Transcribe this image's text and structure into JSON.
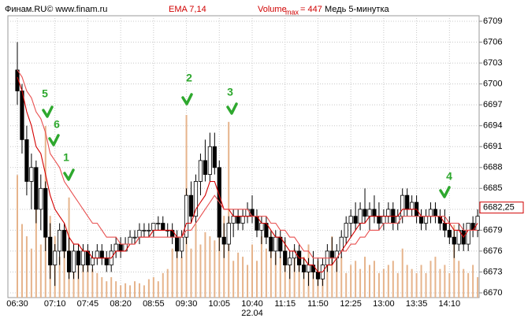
{
  "header": {
    "source": "Финам.RU©  www.finam.ru",
    "indicator": "EMA 7,14",
    "volume_label": "Volume",
    "volume_sub": "max",
    "volume_max_label": "= 447",
    "instrument": "Медь 5-минутка"
  },
  "annotations": [
    "5",
    "6",
    "1",
    "2",
    "3",
    "4"
  ],
  "chart_data": {
    "type": "candlestick",
    "x": [
      "06:30",
      "06:35",
      "06:40",
      "06:45",
      "06:50",
      "06:55",
      "07:00",
      "07:05",
      "07:10",
      "07:15",
      "07:20",
      "07:25",
      "07:30",
      "07:35",
      "07:40",
      "07:45",
      "07:50",
      "07:55",
      "08:00",
      "08:05",
      "08:10",
      "08:15",
      "08:20",
      "08:25",
      "08:30",
      "08:35",
      "08:40",
      "08:45",
      "08:50",
      "08:55",
      "09:00",
      "09:05",
      "09:10",
      "09:15",
      "09:20",
      "09:25",
      "09:30",
      "09:35",
      "09:40",
      "09:45",
      "09:50",
      "09:55",
      "10:00",
      "10:05",
      "10:10",
      "10:15",
      "10:20",
      "10:25",
      "10:30",
      "10:35",
      "10:40",
      "10:45",
      "10:50",
      "10:55",
      "11:00",
      "11:05",
      "11:10",
      "11:15",
      "11:20",
      "11:25",
      "11:30",
      "11:35",
      "11:40",
      "11:45",
      "11:50",
      "11:55",
      "12:00",
      "12:05",
      "12:10",
      "12:15",
      "12:20",
      "12:25",
      "12:30",
      "12:35",
      "12:40",
      "12:45",
      "12:50",
      "12:55",
      "13:00",
      "13:05",
      "13:10",
      "13:15",
      "13:20",
      "13:25",
      "13:30",
      "13:35",
      "13:40",
      "13:45",
      "13:50",
      "13:55",
      "14:00",
      "14:05",
      "14:10",
      "14:15",
      "14:20",
      "14:25",
      "14:30",
      "14:35",
      "14:40"
    ],
    "candles": [
      [
        6702,
        6706,
        6697,
        6699
      ],
      [
        6699,
        6700,
        6690,
        6692
      ],
      [
        6692,
        6694,
        6684,
        6686
      ],
      [
        6686,
        6690,
        6682,
        6688
      ],
      [
        6688,
        6689,
        6680,
        6682
      ],
      [
        6682,
        6687,
        6679,
        6685
      ],
      [
        6685,
        6686,
        6676,
        6678
      ],
      [
        6678,
        6680,
        6672,
        6674
      ],
      [
        6674,
        6677,
        6671,
        6676
      ],
      [
        6676,
        6680,
        6674,
        6679
      ],
      [
        6679,
        6680,
        6675,
        6676
      ],
      [
        6676,
        6678,
        6672,
        6673
      ],
      [
        6673,
        6677,
        6672,
        6676
      ],
      [
        6676,
        6677,
        6672,
        6674
      ],
      [
        6674,
        6677,
        6673,
        6676
      ],
      [
        6676,
        6677,
        6673,
        6674
      ],
      [
        6674,
        6676,
        6673,
        6675
      ],
      [
        6675,
        6677,
        6674,
        6676
      ],
      [
        6676,
        6677,
        6674,
        6675
      ],
      [
        6675,
        6676,
        6673,
        6674
      ],
      [
        6674,
        6677,
        6673,
        6676
      ],
      [
        6676,
        6678,
        6675,
        6677
      ],
      [
        6677,
        6678,
        6675,
        6676
      ],
      [
        6676,
        6678,
        6676,
        6677
      ],
      [
        6677,
        6679,
        6677,
        6678
      ],
      [
        6678,
        6679,
        6677,
        6678
      ],
      [
        6678,
        6680,
        6677,
        6679
      ],
      [
        6679,
        6680,
        6678,
        6679
      ],
      [
        6679,
        6680,
        6678,
        6679
      ],
      [
        6679,
        6680,
        6678,
        6680
      ],
      [
        6680,
        6681,
        6679,
        6680
      ],
      [
        6680,
        6681,
        6679,
        6679
      ],
      [
        6679,
        6680,
        6678,
        6679
      ],
      [
        6679,
        6680,
        6677,
        6678
      ],
      [
        6678,
        6679,
        6675,
        6676
      ],
      [
        6676,
        6679,
        6675,
        6678
      ],
      [
        6678,
        6685,
        6677,
        6684
      ],
      [
        6684,
        6686,
        6680,
        6681
      ],
      [
        6681,
        6687,
        6680,
        6686
      ],
      [
        6686,
        6690,
        6684,
        6689
      ],
      [
        6689,
        6692,
        6686,
        6687
      ],
      [
        6687,
        6693,
        6686,
        6691
      ],
      [
        6691,
        6693,
        6687,
        6688
      ],
      [
        6688,
        6689,
        6676,
        6678
      ],
      [
        6678,
        6680,
        6675,
        6677
      ],
      [
        6677,
        6681,
        6676,
        6680
      ],
      [
        6680,
        6682,
        6678,
        6681
      ],
      [
        6681,
        6682,
        6679,
        6680
      ],
      [
        6680,
        6682,
        6679,
        6681
      ],
      [
        6681,
        6683,
        6680,
        6682
      ],
      [
        6682,
        6684,
        6680,
        6681
      ],
      [
        6681,
        6682,
        6678,
        6679
      ],
      [
        6679,
        6681,
        6677,
        6680
      ],
      [
        6680,
        6681,
        6677,
        6678
      ],
      [
        6678,
        6679,
        6675,
        6676
      ],
      [
        6676,
        6679,
        6674,
        6678
      ],
      [
        6678,
        6679,
        6675,
        6676
      ],
      [
        6676,
        6678,
        6673,
        6674
      ],
      [
        6674,
        6676,
        6672,
        6675
      ],
      [
        6675,
        6677,
        6673,
        6676
      ],
      [
        6676,
        6677,
        6673,
        6674
      ],
      [
        6674,
        6675,
        6672,
        6673
      ],
      [
        6673,
        6675,
        6671,
        6674
      ],
      [
        6674,
        6676,
        6672,
        6673
      ],
      [
        6673,
        6675,
        6671,
        6672
      ],
      [
        6672,
        6675,
        6671,
        6674
      ],
      [
        6674,
        6677,
        6673,
        6676
      ],
      [
        6676,
        6678,
        6674,
        6675
      ],
      [
        6675,
        6677,
        6673,
        6676
      ],
      [
        6676,
        6679,
        6675,
        6678
      ],
      [
        6678,
        6681,
        6677,
        6680
      ],
      [
        6680,
        6682,
        6678,
        6681
      ],
      [
        6681,
        6683,
        6679,
        6680
      ],
      [
        6680,
        6683,
        6679,
        6682
      ],
      [
        6682,
        6685,
        6680,
        6681
      ],
      [
        6681,
        6683,
        6679,
        6682
      ],
      [
        6682,
        6684,
        6680,
        6681
      ],
      [
        6681,
        6683,
        6679,
        6680
      ],
      [
        6680,
        6682,
        6679,
        6681
      ],
      [
        6681,
        6683,
        6680,
        6682
      ],
      [
        6682,
        6683,
        6679,
        6680
      ],
      [
        6680,
        6682,
        6679,
        6681
      ],
      [
        6681,
        6685,
        6680,
        6684
      ],
      [
        6684,
        6685,
        6681,
        6682
      ],
      [
        6682,
        6684,
        6681,
        6683
      ],
      [
        6683,
        6684,
        6680,
        6681
      ],
      [
        6681,
        6682,
        6679,
        6680
      ],
      [
        6680,
        6682,
        6679,
        6681
      ],
      [
        6681,
        6683,
        6680,
        6682
      ],
      [
        6682,
        6683,
        6680,
        6681
      ],
      [
        6681,
        6682,
        6679,
        6680
      ],
      [
        6680,
        6682,
        6678,
        6679
      ],
      [
        6679,
        6681,
        6677,
        6678
      ],
      [
        6678,
        6679,
        6675,
        6677
      ],
      [
        6677,
        6680,
        6676,
        6679
      ],
      [
        6679,
        6680,
        6676,
        6677
      ],
      [
        6677,
        6680,
        6676,
        6680
      ],
      [
        6680,
        6681,
        6678,
        6679
      ],
      [
        6679,
        6682,
        6678,
        6681
      ]
    ],
    "volume": [
      300,
      180,
      150,
      120,
      250,
      130,
      420,
      200,
      150,
      100,
      130,
      245,
      110,
      90,
      120,
      80,
      70,
      60,
      50,
      40,
      50,
      40,
      30,
      35,
      30,
      40,
      35,
      30,
      45,
      50,
      40,
      60,
      70,
      120,
      150,
      100,
      447,
      120,
      180,
      130,
      160,
      150,
      140,
      200,
      200,
      430,
      90,
      110,
      100,
      80,
      130,
      90,
      150,
      120,
      160,
      110,
      100,
      140,
      90,
      120,
      80,
      100,
      130,
      70,
      90,
      80,
      110,
      150,
      90,
      100,
      60,
      80,
      90,
      70,
      100,
      80,
      90,
      60,
      70,
      80,
      90,
      60,
      120,
      80,
      70,
      60,
      80,
      60,
      90,
      100,
      70,
      80,
      60,
      178,
      90,
      70,
      60,
      80,
      50
    ],
    "vlim": [
      0,
      447
    ],
    "volume_color": "#e6b48c",
    "series": [
      {
        "color": "#d40000",
        "values": [
          6701,
          6699,
          6696,
          6694,
          6691,
          6690,
          6687,
          6684,
          6682,
          6681,
          6680,
          6678,
          6677,
          6677,
          6676,
          6676,
          6675,
          6675,
          6675,
          6675,
          6675,
          6676,
          6676,
          6676,
          6677,
          6677,
          6678,
          6678,
          6678,
          6679,
          6679,
          6679,
          6679,
          6679,
          6678,
          6678,
          6680,
          6680,
          6682,
          6683,
          6684,
          6686,
          6686,
          6684,
          6682,
          6682,
          6681,
          6681,
          6681,
          6681,
          6681,
          6681,
          6680,
          6680,
          6679,
          6678,
          6678,
          6677,
          6676,
          6676,
          6675,
          6675,
          6674,
          6674,
          6673,
          6673,
          6674,
          6674,
          6675,
          6676,
          6677,
          6678,
          6679,
          6680,
          6680,
          6681,
          6681,
          6681,
          6681,
          6681,
          6681,
          6681,
          6682,
          6682,
          6682,
          6682,
          6681,
          6681,
          6681,
          6681,
          6681,
          6680,
          6680,
          6679,
          6679,
          6678,
          6679,
          6679,
          6680
        ]
      },
      {
        "color": "#e85050",
        "values": [
          6702,
          6701,
          6699,
          6698,
          6696,
          6695,
          6693,
          6690,
          6689,
          6688,
          6686,
          6685,
          6684,
          6683,
          6682,
          6681,
          6680,
          6680,
          6679,
          6678,
          6678,
          6678,
          6677,
          6677,
          6677,
          6677,
          6678,
          6678,
          6678,
          6678,
          6678,
          6678,
          6678,
          6678,
          6678,
          6678,
          6679,
          6679,
          6680,
          6681,
          6682,
          6683,
          6684,
          6683,
          6682,
          6682,
          6682,
          6682,
          6682,
          6682,
          6681,
          6681,
          6681,
          6681,
          6680,
          6680,
          6679,
          6679,
          6678,
          6678,
          6677,
          6676,
          6676,
          6675,
          6675,
          6675,
          6675,
          6675,
          6675,
          6676,
          6676,
          6677,
          6677,
          6678,
          6678,
          6679,
          6679,
          6679,
          6680,
          6680,
          6680,
          6680,
          6681,
          6681,
          6681,
          6681,
          6681,
          6681,
          6681,
          6681,
          6681,
          6681,
          6680,
          6680,
          6680,
          6679,
          6679,
          6679,
          6679
        ]
      }
    ],
    "ylim": [
      6670,
      6709
    ],
    "yticks": [
      6670,
      6673,
      6676,
      6679,
      6682,
      6685,
      6688,
      6691,
      6694,
      6697,
      6700,
      6703,
      6706,
      6709
    ],
    "xticks": [
      "06:30",
      "07:10",
      "07:45",
      "08:20",
      "08:55",
      "09:30",
      "10:05",
      "10:40",
      "11:15",
      "11:50",
      "12:25",
      "13:00",
      "13:35",
      "14:10"
    ],
    "date_label": "22.04",
    "last_price": {
      "value": 6682.25,
      "label": "6682,25"
    },
    "grid": true
  }
}
